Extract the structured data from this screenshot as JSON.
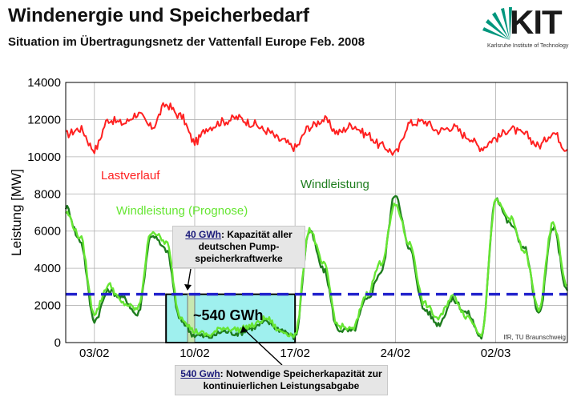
{
  "header": {
    "title": "Windenergie und Speicherbedarf",
    "subtitle": "Situation im Übertragungsnetz der Vattenfall Europe Feb. 2008"
  },
  "logo": {
    "word": "KIT",
    "tagline": "Karlsruhe Institute of Technology"
  },
  "colors": {
    "last": "#ff2020",
    "wind": "#1e7d1e",
    "prognose": "#66e633",
    "threshold": "#2222cc",
    "storage_fill": "#9ff0ee",
    "storage_border": "#000000"
  },
  "chart_data": {
    "type": "line",
    "ylabel": "Leistung [MW]",
    "ylim": [
      0,
      14000
    ],
    "yticks": [
      0,
      2000,
      4000,
      6000,
      8000,
      10000,
      12000,
      14000
    ],
    "xlim": [
      "2008-02-01",
      "2008-03-07"
    ],
    "xticks": [
      {
        "label": "03/02",
        "date": "2008-02-03"
      },
      {
        "label": "10/02",
        "date": "2008-02-10"
      },
      {
        "label": "17/02",
        "date": "2008-02-17"
      },
      {
        "label": "24/02",
        "date": "2008-02-24"
      },
      {
        "label": "02/03",
        "date": "2008-03-02"
      }
    ],
    "grid": true,
    "series": [
      {
        "name": "Lastverlauf",
        "color": "#ff2020",
        "x": [
          "2008-02-01",
          "2008-02-02",
          "2008-02-03",
          "2008-02-04",
          "2008-02-05",
          "2008-02-06",
          "2008-02-07",
          "2008-02-08",
          "2008-02-09",
          "2008-02-10",
          "2008-02-11",
          "2008-02-12",
          "2008-02-13",
          "2008-02-14",
          "2008-02-15",
          "2008-02-16",
          "2008-02-17",
          "2008-02-18",
          "2008-02-19",
          "2008-02-20",
          "2008-02-21",
          "2008-02-22",
          "2008-02-23",
          "2008-02-24",
          "2008-02-25",
          "2008-02-26",
          "2008-02-27",
          "2008-02-28",
          "2008-02-29",
          "2008-03-01",
          "2008-03-02",
          "2008-03-03",
          "2008-03-04",
          "2008-03-05",
          "2008-03-06",
          "2008-03-07"
        ],
        "y": [
          11200,
          11500,
          10400,
          12000,
          11800,
          12300,
          11600,
          12800,
          12200,
          10800,
          11600,
          11900,
          12100,
          11800,
          11400,
          10900,
          10500,
          11600,
          12000,
          11300,
          11700,
          11200,
          10600,
          10200,
          11800,
          11900,
          11400,
          11600,
          11100,
          10500,
          11000,
          11500,
          11200,
          10600,
          11300,
          10400
        ]
      },
      {
        "name": "Windleistung",
        "color": "#1e7d1e",
        "x": [
          "2008-02-01",
          "2008-02-02",
          "2008-02-03",
          "2008-02-04",
          "2008-02-05",
          "2008-02-06",
          "2008-02-07",
          "2008-02-08",
          "2008-02-09",
          "2008-02-10",
          "2008-02-11",
          "2008-02-12",
          "2008-02-13",
          "2008-02-14",
          "2008-02-15",
          "2008-02-16",
          "2008-02-17",
          "2008-02-18",
          "2008-02-19",
          "2008-02-20",
          "2008-02-21",
          "2008-02-22",
          "2008-02-23",
          "2008-02-24",
          "2008-02-25",
          "2008-02-26",
          "2008-02-27",
          "2008-02-28",
          "2008-02-29",
          "2008-03-01",
          "2008-03-02",
          "2008-03-03",
          "2008-03-04",
          "2008-03-05",
          "2008-03-06",
          "2008-03-07"
        ],
        "y": [
          7300,
          5500,
          1200,
          2800,
          2400,
          1500,
          5800,
          5000,
          1200,
          400,
          300,
          600,
          500,
          800,
          1100,
          700,
          300,
          6000,
          3900,
          700,
          600,
          2300,
          3800,
          8000,
          5000,
          1800,
          1000,
          2300,
          1600,
          300,
          7800,
          6400,
          5100,
          1500,
          6200,
          2800
        ]
      },
      {
        "name": "Windleistung (Prognose)",
        "color": "#66e633",
        "x": [
          "2008-02-01",
          "2008-02-02",
          "2008-02-03",
          "2008-02-04",
          "2008-02-05",
          "2008-02-06",
          "2008-02-07",
          "2008-02-08",
          "2008-02-09",
          "2008-02-10",
          "2008-02-11",
          "2008-02-12",
          "2008-02-13",
          "2008-02-14",
          "2008-02-15",
          "2008-02-16",
          "2008-02-17",
          "2008-02-18",
          "2008-02-19",
          "2008-02-20",
          "2008-02-21",
          "2008-02-22",
          "2008-02-23",
          "2008-02-24",
          "2008-02-25",
          "2008-02-26",
          "2008-02-27",
          "2008-02-28",
          "2008-02-29",
          "2008-03-01",
          "2008-03-02",
          "2008-03-03",
          "2008-03-04",
          "2008-03-05",
          "2008-03-06",
          "2008-03-07"
        ],
        "y": [
          7000,
          5700,
          1600,
          3100,
          2100,
          1800,
          6000,
          5400,
          1400,
          600,
          400,
          800,
          700,
          900,
          1300,
          600,
          400,
          6100,
          4200,
          900,
          700,
          2600,
          4300,
          7400,
          5300,
          2100,
          1300,
          2500,
          1400,
          500,
          7600,
          6700,
          4900,
          1800,
          6400,
          3100
        ]
      }
    ],
    "threshold": {
      "value": 2600
    },
    "storage_region": {
      "x_start": "2008-02-08",
      "x_end": "2008-02-17",
      "y_top": 2600
    },
    "pump_bar": {
      "x_start": "2008-02-09T12:00",
      "x_end": "2008-02-10",
      "y_top": 2600
    },
    "annotations": {
      "last_label": "Lastverlauf",
      "wind_label": "Windleistung",
      "prognose_label": "Windleistung (Prognose)",
      "storage_label": "~540 GWh",
      "credit": "IfR, TU Braunschweig"
    }
  },
  "callouts": {
    "pump": {
      "key": "40 GWh",
      "text": ": Kapazität aller deutschen Pump-speicherkraftwerke"
    },
    "storage": {
      "key": "540 Gwh",
      "text": ": Notwendige Speicherkapazität zur kontinuierlichen Leistungsabgabe"
    }
  }
}
